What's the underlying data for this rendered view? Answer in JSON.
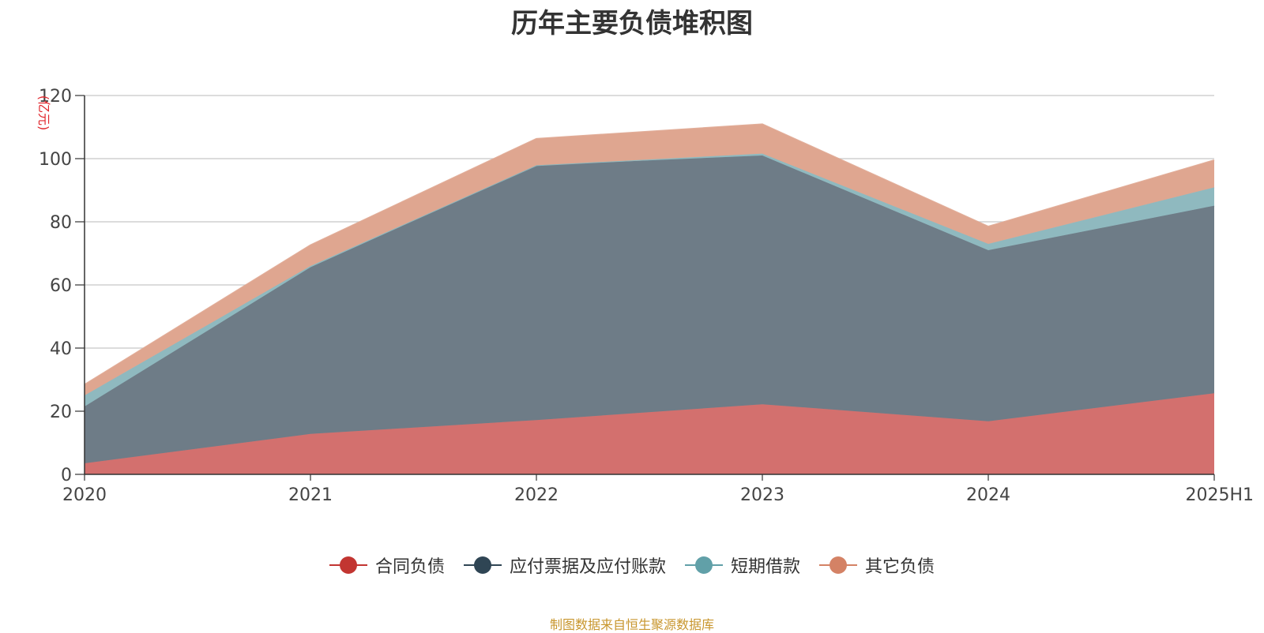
{
  "chart_data": {
    "type": "area",
    "stacked": true,
    "title": "历年主要负债堆积图",
    "unit_label": "(亿元)",
    "x": [
      "2020",
      "2021",
      "2022",
      "2023",
      "2024",
      "2025H1"
    ],
    "yticks": [
      "0",
      "20",
      "40",
      "60",
      "80",
      "100",
      "120"
    ],
    "ylim": [
      0,
      120
    ],
    "grid": true,
    "legend_position": "bottom",
    "series": [
      {
        "name": "合同负债",
        "values": [
          3.5,
          12.8,
          17.2,
          22.2,
          16.8,
          25.7
        ],
        "color": "#c23531",
        "fill": "#d3706e"
      },
      {
        "name": "应付票据及应付账款",
        "values": [
          18.0,
          52.8,
          80.7,
          78.8,
          54.2,
          59.4
        ],
        "color": "#2f4554",
        "fill": "#6e7c87"
      },
      {
        "name": "短期借款",
        "values": [
          3.5,
          0.4,
          0.0,
          0.6,
          2.0,
          5.8
        ],
        "color": "#61a0a8",
        "fill": "#8fb9bf"
      },
      {
        "name": "其它负债",
        "values": [
          3.4,
          6.6,
          8.4,
          9.3,
          5.5,
          8.6
        ],
        "color": "#d48265",
        "fill": "#dfa690"
      }
    ],
    "source_note": "制图数据来自恒生聚源数据库"
  }
}
